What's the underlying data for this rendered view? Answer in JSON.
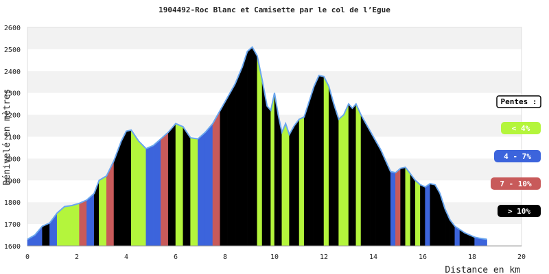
{
  "chart_data": {
    "type": "area",
    "title": "1904492-Roc Blanc et Camisette par le col de l’Egue",
    "xlabel": "Distance en km",
    "ylabel": "Dénivelé en mètres",
    "xlim": [
      0,
      20
    ],
    "ylim": [
      1600,
      2600
    ],
    "x_ticks": [
      "0",
      "2",
      "4",
      "6",
      "8",
      "10",
      "12",
      "14",
      "16",
      "18",
      "20"
    ],
    "y_ticks": [
      "1600",
      "1700",
      "1800",
      "1900",
      "2000",
      "2100",
      "2200",
      "2300",
      "2400",
      "2500",
      "2600"
    ],
    "grid": "horizontal bands",
    "legend_position": "right",
    "legend": {
      "title": "Pentes :",
      "items": [
        {
          "label": "< 4%",
          "color": "#b4f53c",
          "text_color": "#ffffff"
        },
        {
          "label": "4 - 7%",
          "color": "#3c64dc",
          "text_color": "#ffffff"
        },
        {
          "label": "7 - 10%",
          "color": "#c85a5a",
          "text_color": "#ffffff"
        },
        {
          "label": "> 10%",
          "color": "#000000",
          "text_color": "#ffffff"
        }
      ]
    },
    "series": [
      {
        "x": [
          0,
          0.3,
          0.6,
          0.9,
          1.2,
          1.5,
          1.8,
          2.1,
          2.4,
          2.7,
          2.9,
          3.2,
          3.5,
          3.8,
          4.0,
          4.2,
          4.5,
          4.8,
          5.1,
          5.4,
          5.7,
          6.0,
          6.3,
          6.6,
          6.9,
          7.2,
          7.5,
          7.8,
          8.1,
          8.4,
          8.7,
          8.9,
          9.1,
          9.3,
          9.5,
          9.7,
          9.85,
          10.0,
          10.15,
          10.3,
          10.45,
          10.6,
          10.8,
          11.0,
          11.2,
          11.4,
          11.6,
          11.8,
          12.0,
          12.2,
          12.4,
          12.6,
          12.8,
          13.0,
          13.15,
          13.3,
          13.5,
          13.7,
          13.9,
          14.1,
          14.3,
          14.5,
          14.7,
          14.9,
          15.1,
          15.3,
          15.5,
          15.7,
          15.9,
          16.1,
          16.3,
          16.5,
          16.7,
          16.9,
          17.1,
          17.3,
          17.5,
          17.7,
          17.9,
          18.1,
          18.3,
          18.6
        ],
        "y": [
          1630,
          1650,
          1690,
          1705,
          1750,
          1780,
          1785,
          1795,
          1810,
          1840,
          1900,
          1920,
          1990,
          2080,
          2125,
          2130,
          2080,
          2045,
          2060,
          2090,
          2120,
          2160,
          2145,
          2095,
          2090,
          2120,
          2160,
          2220,
          2280,
          2340,
          2420,
          2490,
          2510,
          2470,
          2360,
          2240,
          2220,
          2300,
          2200,
          2120,
          2160,
          2110,
          2150,
          2180,
          2190,
          2260,
          2330,
          2380,
          2375,
          2330,
          2250,
          2180,
          2200,
          2250,
          2230,
          2250,
          2200,
          2160,
          2120,
          2080,
          2040,
          1990,
          1940,
          1935,
          1955,
          1960,
          1930,
          1900,
          1880,
          1870,
          1885,
          1880,
          1840,
          1770,
          1720,
          1690,
          1675,
          1660,
          1650,
          1640,
          1635,
          1630
        ],
        "slopes": [
          1,
          1,
          3,
          1,
          0,
          0,
          0,
          2,
          1,
          3,
          0,
          2,
          3,
          3,
          3,
          0,
          0,
          1,
          1,
          2,
          3,
          0,
          3,
          0,
          1,
          1,
          2,
          3,
          3,
          3,
          3,
          3,
          3,
          0,
          3,
          3,
          0,
          3,
          3,
          0,
          0,
          3,
          3,
          0,
          3,
          3,
          3,
          3,
          0,
          3,
          3,
          0,
          0,
          3,
          3,
          0,
          3,
          3,
          3,
          3,
          3,
          3,
          1,
          2,
          3,
          0,
          3,
          0,
          3,
          1,
          3,
          3,
          3,
          3,
          3,
          1,
          3,
          3,
          3,
          1,
          1
        ]
      }
    ]
  }
}
